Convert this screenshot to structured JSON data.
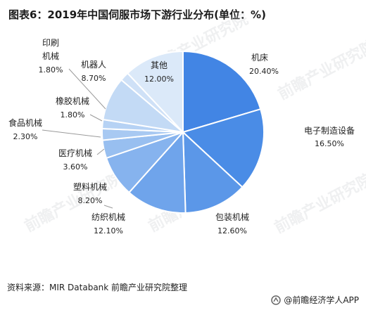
{
  "title": "图表6：2019年中国伺服市场下游行业分布(单位：%)",
  "source": "资料来源：MIR Databank 前瞻产业研究院整理",
  "brand": "@前瞻经济学人APP",
  "watermark": "前瞻产业研究院",
  "chart_data": {
    "type": "pie",
    "unit": "%",
    "slices": [
      {
        "label": "机床",
        "value": 20.4,
        "value_text": "20.40%",
        "color": "#4285e4"
      },
      {
        "label": "电子制造设备",
        "value": 16.5,
        "value_text": "16.50%",
        "color": "#4a8ce6"
      },
      {
        "label": "包装机械",
        "value": 12.6,
        "value_text": "12.60%",
        "color": "#5b97e8"
      },
      {
        "label": "纺织机械",
        "value": 12.1,
        "value_text": "12.10%",
        "color": "#6fa4eb"
      },
      {
        "label": "塑料机械",
        "value": 8.2,
        "value_text": "8.20%",
        "color": "#86b3ee"
      },
      {
        "label": "医疗机械",
        "value": 3.6,
        "value_text": "3.60%",
        "color": "#98bff0"
      },
      {
        "label": "食品机械",
        "value": 2.3,
        "value_text": "2.30%",
        "color": "#a8c9f2"
      },
      {
        "label": "橡胶机械",
        "value": 1.8,
        "value_text": "1.80%",
        "color": "#b6d2f4"
      },
      {
        "label": "机器人",
        "value": 8.7,
        "value_text": "8.70%",
        "color": "#c3daf5"
      },
      {
        "label": "印刷机械",
        "value": 1.8,
        "value_text": "1.80%",
        "color": "#cfe1f7"
      },
      {
        "label": "其他",
        "value": 12.0,
        "value_text": "12.00%",
        "color": "#dbe9f9"
      }
    ]
  }
}
